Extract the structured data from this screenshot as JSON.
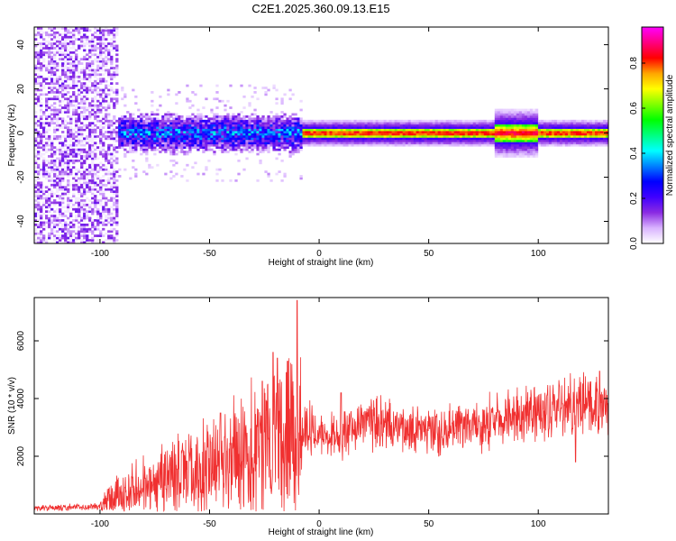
{
  "title": "C2E1.2025.360.09.13.E15",
  "chart_data": [
    {
      "type": "heatmap",
      "title": "C2E1.2025.360.09.13.E15",
      "xlabel": "Height of straight line (km)",
      "ylabel": "Frequency (Hz)",
      "xlim": [
        -130,
        132
      ],
      "ylim": [
        -50,
        48
      ],
      "xticks": [
        -100,
        -50,
        0,
        50,
        100
      ],
      "yticks": [
        -40,
        -20,
        0,
        20,
        40
      ],
      "colorbar": {
        "label": "Normalized spectral amplitude",
        "range": [
          0,
          0.96
        ],
        "ticks": [
          0.0,
          0.2,
          0.4,
          0.6,
          0.8
        ],
        "colormap": [
          "#ffffff",
          "#d9b3ff",
          "#8a2be2",
          "#3f00ff",
          "#0000ff",
          "#0080ff",
          "#00ffff",
          "#00ff80",
          "#00ff00",
          "#80ff00",
          "#ffff00",
          "#ffa500",
          "#ff0000",
          "#ff0080",
          "#ff00ff"
        ]
      },
      "regions": [
        {
          "x_range": [
            -130,
            -92
          ],
          "f_range": [
            -50,
            48
          ],
          "amplitude": 0.1,
          "note": "broadband noise"
        },
        {
          "x_range": [
            -92,
            -8
          ],
          "center_hz": 0,
          "halfwidth_hz": 6,
          "amplitude_peak": 0.45
        },
        {
          "x_range": [
            -8,
            132
          ],
          "center_hz": 0,
          "halfwidth_hz": 3,
          "amplitude_peak": 0.92
        }
      ]
    },
    {
      "type": "line",
      "xlabel": "Height of straight line (km)",
      "ylabel": "SNR (10 * v/v)",
      "xlim": [
        -130,
        132
      ],
      "ylim": [
        0,
        7500
      ],
      "xticks": [
        -100,
        -50,
        0,
        50,
        100
      ],
      "yticks": [
        2000,
        4000,
        6000
      ],
      "color": "#f03030",
      "envelope_points": [
        {
          "x": -130,
          "y": 200
        },
        {
          "x": -100,
          "y": 250
        },
        {
          "x": -90,
          "y": 800
        },
        {
          "x": -70,
          "y": 1200
        },
        {
          "x": -50,
          "y": 1600
        },
        {
          "x": -30,
          "y": 2200
        },
        {
          "x": -20,
          "y": 2600
        },
        {
          "x": -10,
          "y": 3000
        },
        {
          "x": 0,
          "y": 2900
        },
        {
          "x": 10,
          "y": 2700
        },
        {
          "x": 25,
          "y": 3200
        },
        {
          "x": 40,
          "y": 2900
        },
        {
          "x": 60,
          "y": 2900
        },
        {
          "x": 80,
          "y": 3200
        },
        {
          "x": 100,
          "y": 3600
        },
        {
          "x": 120,
          "y": 3800
        },
        {
          "x": 132,
          "y": 3500
        }
      ],
      "spikes": [
        {
          "x": -10,
          "y": 7400
        },
        {
          "x": -21,
          "y": 5600
        },
        {
          "x": -19,
          "y": 5400
        },
        {
          "x": -15,
          "y": 4900
        },
        {
          "x": -26,
          "y": 4600
        },
        {
          "x": -45,
          "y": 3500
        },
        {
          "x": 10,
          "y": 4200
        },
        {
          "x": 128,
          "y": 4950
        },
        {
          "x": 117,
          "y": 1800
        }
      ]
    }
  ]
}
